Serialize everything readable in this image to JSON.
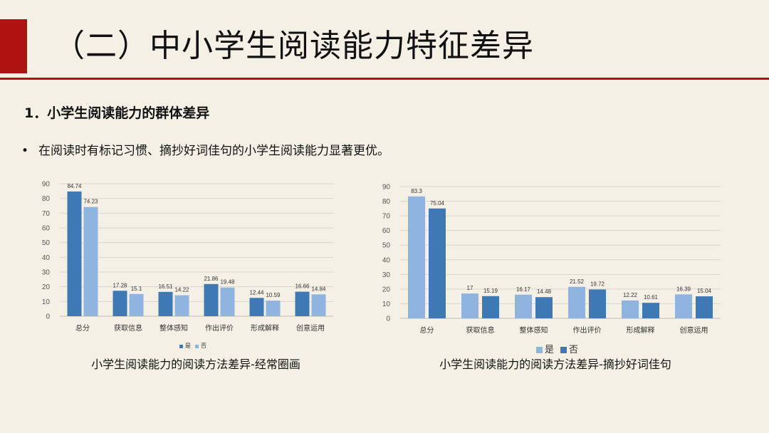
{
  "slide": {
    "title": "（二）中小学生阅读能力特征差异",
    "section_heading": "1．小学生阅读能力的群体差异",
    "bullet_marker": "•",
    "bullet_text": "在阅读时有标记习惯、摘抄好词佳句的小学生阅读能力显著更优。",
    "accent_color": "#b01212"
  },
  "chart_data": [
    {
      "type": "bar",
      "title": "",
      "categories": [
        "总分",
        "获取信息",
        "整体感知",
        "作出评价",
        "形成解释",
        "创意运用"
      ],
      "series": [
        {
          "name": "是",
          "values": [
            84.74,
            17.28,
            16.51,
            21.86,
            12.44,
            16.66
          ],
          "color": "#3e78b5"
        },
        {
          "name": "否",
          "values": [
            74.23,
            15.1,
            14.22,
            19.48,
            10.59,
            14.84
          ],
          "color": "#8fb4e0"
        }
      ],
      "labels": [
        [
          "84.74",
          "17.28",
          "16.51",
          "21.86",
          "12.44",
          "16.66"
        ],
        [
          "74.23",
          "15.1",
          "14.22",
          "19.48",
          "10.59",
          "14.84"
        ]
      ],
      "yticks": [
        "0",
        "10",
        "20",
        "30",
        "40",
        "50",
        "60",
        "70",
        "80",
        "90"
      ],
      "ylim": [
        0,
        90
      ],
      "grid": true,
      "legend_position": "bottom",
      "caption": "小学生阅读能力的阅读方法差异-经常圈画"
    },
    {
      "type": "bar",
      "title": "",
      "categories": [
        "总分",
        "获取信息",
        "整体感知",
        "作出评价",
        "形成解释",
        "创意运用"
      ],
      "series": [
        {
          "name": "是",
          "values": [
            83.3,
            17,
            16.17,
            21.52,
            12.22,
            16.39
          ],
          "color": "#8fb4e0"
        },
        {
          "name": "否",
          "values": [
            75.04,
            15.19,
            14.48,
            19.72,
            10.61,
            15.04
          ],
          "color": "#3e78b5"
        }
      ],
      "labels": [
        [
          "83.3",
          "17",
          "16.17",
          "21.52",
          "12.22",
          "16.39"
        ],
        [
          "75.04",
          "15.19",
          "14.48",
          "19.72",
          "10.61",
          "15.04"
        ]
      ],
      "yticks": [
        "0",
        "10",
        "20",
        "30",
        "40",
        "50",
        "60",
        "70",
        "80",
        "90"
      ],
      "ylim": [
        0,
        90
      ],
      "grid": true,
      "legend_position": "bottom",
      "caption": "小学生阅读能力的阅读方法差异-摘抄好词佳句"
    }
  ]
}
